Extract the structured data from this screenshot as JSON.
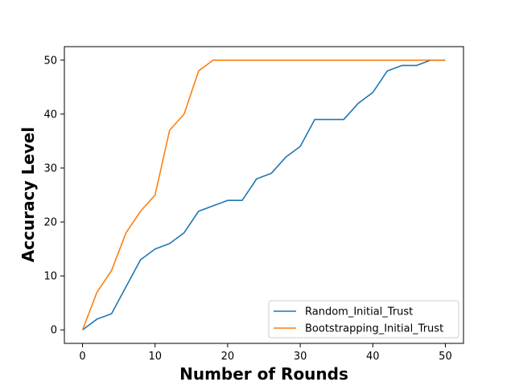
{
  "chart_data": {
    "type": "line",
    "title": "",
    "xlabel": "Number of Rounds",
    "ylabel": "Accuracy Level",
    "xlim": [
      -2.5,
      52.5
    ],
    "ylim": [
      -2.5,
      52.5
    ],
    "xticks": [
      0,
      10,
      20,
      30,
      40,
      50
    ],
    "yticks": [
      0,
      10,
      20,
      30,
      40,
      50
    ],
    "grid": false,
    "legend_position": "lower right",
    "series": [
      {
        "name": "Random_Initial_Trust",
        "color": "#1f77b4",
        "x": [
          0,
          2,
          4,
          6,
          8,
          10,
          12,
          14,
          16,
          18,
          20,
          22,
          24,
          26,
          28,
          30,
          32,
          34,
          36,
          38,
          40,
          42,
          44,
          46,
          48,
          50
        ],
        "y": [
          0,
          2,
          3,
          8,
          13,
          15,
          16,
          18,
          22,
          23,
          24,
          24,
          28,
          29,
          32,
          34,
          39,
          39,
          39,
          42,
          44,
          48,
          49,
          49,
          50,
          50
        ]
      },
      {
        "name": "Bootstrapping_Initial_Trust",
        "color": "#ff7f0e",
        "x": [
          0,
          2,
          4,
          6,
          8,
          10,
          12,
          14,
          16,
          18,
          20,
          22,
          24,
          26,
          28,
          30,
          32,
          34,
          36,
          38,
          40,
          42,
          44,
          46,
          48,
          50
        ],
        "y": [
          0,
          7,
          11,
          18,
          22,
          25,
          37,
          40,
          48,
          50,
          50,
          50,
          50,
          50,
          50,
          50,
          50,
          50,
          50,
          50,
          50,
          50,
          50,
          50,
          50,
          50
        ]
      }
    ]
  }
}
